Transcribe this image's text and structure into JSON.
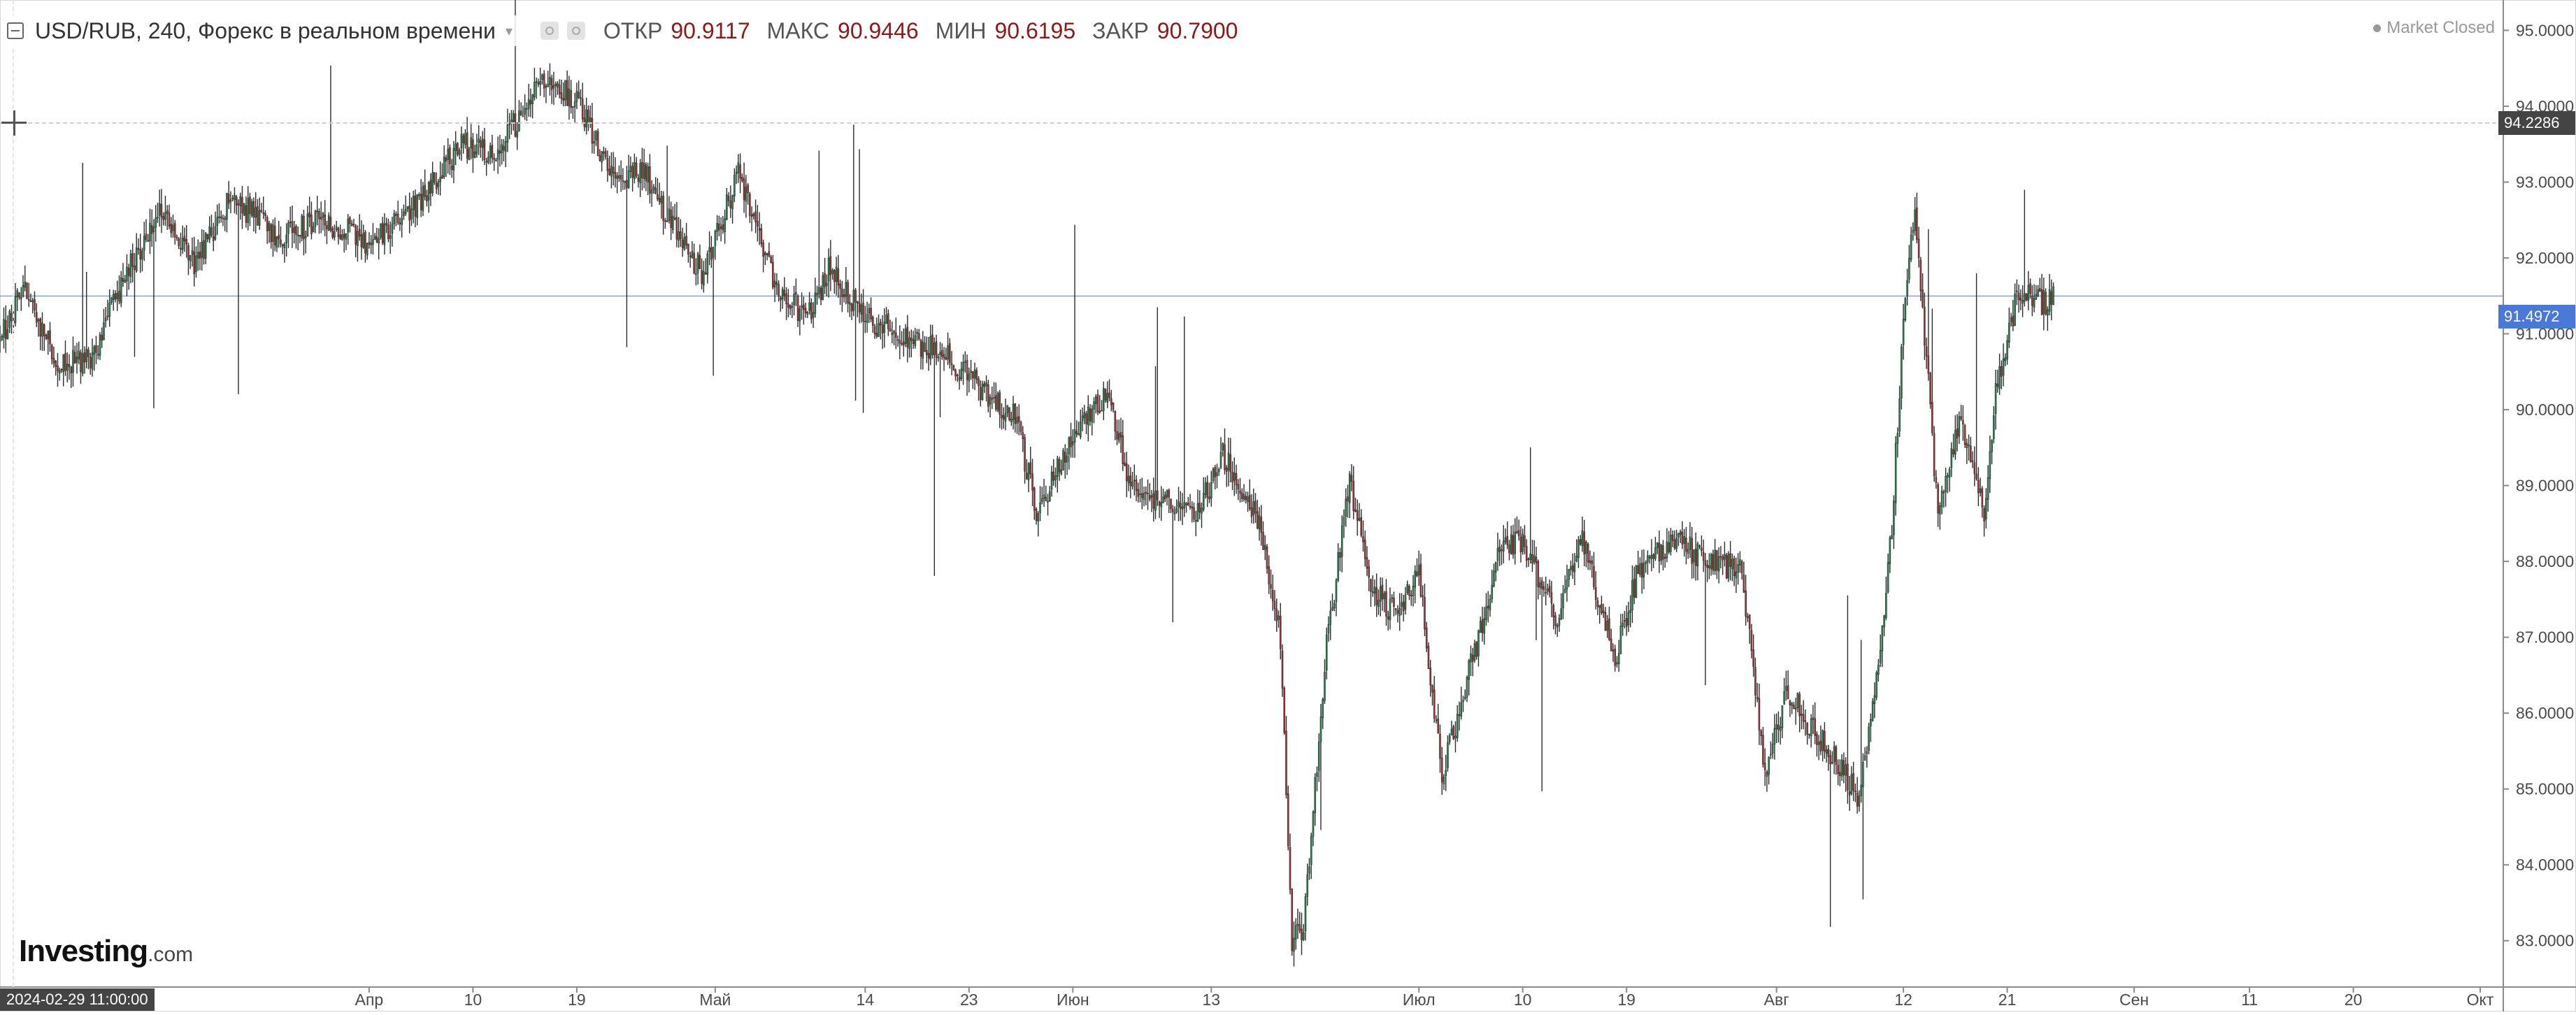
{
  "legend": {
    "title": "USD/RUB, 240, Форекс в реальном времени",
    "ohlc": [
      {
        "label": "ОТКР",
        "value": "90.9117"
      },
      {
        "label": "МАКС",
        "value": "90.9446"
      },
      {
        "label": "МИН",
        "value": "90.6195"
      },
      {
        "label": "ЗАКР",
        "value": "90.7900"
      }
    ]
  },
  "status": {
    "text": "Market Closed"
  },
  "crosshair": {
    "price_label": "94.2286",
    "time_label": "2024-02-29 11:00:00"
  },
  "last_price": {
    "label": "91.4972"
  },
  "watermark": {
    "brand": "Investing",
    "suffix": ".com"
  },
  "colors": {
    "up": "#1e8a4c",
    "down": "#b03030",
    "last_price_line": "#4a78d8",
    "crosshair_tag": "#444444"
  },
  "chart_data": {
    "type": "candlestick",
    "title": "USD/RUB, 240, Форекс в реальном времени",
    "y_axis": {
      "position": "right",
      "range": [
        82.5,
        95.4
      ],
      "ticks": [
        "95.0000",
        "94.0000",
        "93.0000",
        "92.0000",
        "91.0000",
        "90.0000",
        "89.0000",
        "88.0000",
        "87.0000",
        "86.0000",
        "85.0000",
        "84.0000",
        "83.0000"
      ]
    },
    "x_axis": {
      "range": [
        "2024-02-29",
        "2024-10-03"
      ],
      "ticks": [
        {
          "date": "2024-04-01",
          "label": "Апр"
        },
        {
          "date": "2024-04-10",
          "label": "10"
        },
        {
          "date": "2024-04-19",
          "label": "19"
        },
        {
          "date": "2024-05-01",
          "label": "Май"
        },
        {
          "date": "2024-05-14",
          "label": "14"
        },
        {
          "date": "2024-05-23",
          "label": "23"
        },
        {
          "date": "2024-06-01",
          "label": "Июн"
        },
        {
          "date": "2024-06-13",
          "label": "13"
        },
        {
          "date": "2024-07-01",
          "label": "Июл"
        },
        {
          "date": "2024-07-10",
          "label": "10"
        },
        {
          "date": "2024-07-19",
          "label": "19"
        },
        {
          "date": "2024-08-01",
          "label": "Авг"
        },
        {
          "date": "2024-08-12",
          "label": "12"
        },
        {
          "date": "2024-08-21",
          "label": "21"
        },
        {
          "date": "2024-09-01",
          "label": "Сен"
        },
        {
          "date": "2024-09-11",
          "label": "11"
        },
        {
          "date": "2024-09-20",
          "label": "20"
        },
        {
          "date": "2024-10-01",
          "label": "Окт"
        }
      ]
    },
    "bars_per_day": 6,
    "last_price": 91.4972,
    "crosshair_price": 94.2286,
    "close_path": [
      {
        "date": "2024-02-29",
        "close": 90.9
      },
      {
        "date": "2024-03-02",
        "close": 91.6
      },
      {
        "date": "2024-03-05",
        "close": 90.6
      },
      {
        "date": "2024-03-08",
        "close": 90.7
      },
      {
        "date": "2024-03-11",
        "close": 91.8
      },
      {
        "date": "2024-03-14",
        "close": 92.6
      },
      {
        "date": "2024-03-17",
        "close": 91.9
      },
      {
        "date": "2024-03-20",
        "close": 92.8
      },
      {
        "date": "2024-03-24",
        "close": 92.3
      },
      {
        "date": "2024-03-28",
        "close": 92.5
      },
      {
        "date": "2024-04-01",
        "close": 92.2
      },
      {
        "date": "2024-04-05",
        "close": 92.7
      },
      {
        "date": "2024-04-09",
        "close": 93.5
      },
      {
        "date": "2024-04-12",
        "close": 93.4
      },
      {
        "date": "2024-04-16",
        "close": 94.3
      },
      {
        "date": "2024-04-19",
        "close": 94.1
      },
      {
        "date": "2024-04-22",
        "close": 93.1
      },
      {
        "date": "2024-04-25",
        "close": 93.1
      },
      {
        "date": "2024-04-28",
        "close": 92.2
      },
      {
        "date": "2024-04-30",
        "close": 91.8
      },
      {
        "date": "2024-05-03",
        "close": 93.1
      },
      {
        "date": "2024-05-06",
        "close": 91.7
      },
      {
        "date": "2024-05-09",
        "close": 91.2
      },
      {
        "date": "2024-05-11",
        "close": 91.9
      },
      {
        "date": "2024-05-14",
        "close": 91.2
      },
      {
        "date": "2024-05-17",
        "close": 91.0
      },
      {
        "date": "2024-05-21",
        "close": 90.7
      },
      {
        "date": "2024-05-24",
        "close": 90.3
      },
      {
        "date": "2024-05-27",
        "close": 89.9
      },
      {
        "date": "2024-05-29",
        "close": 88.6
      },
      {
        "date": "2024-06-01",
        "close": 89.7
      },
      {
        "date": "2024-06-04",
        "close": 90.2
      },
      {
        "date": "2024-06-06",
        "close": 89.0
      },
      {
        "date": "2024-06-09",
        "close": 88.8
      },
      {
        "date": "2024-06-12",
        "close": 88.7
      },
      {
        "date": "2024-06-14",
        "close": 89.4
      },
      {
        "date": "2024-06-17",
        "close": 88.6
      },
      {
        "date": "2024-06-19",
        "close": 87.0
      },
      {
        "date": "2024-06-20",
        "close": 83.0
      },
      {
        "date": "2024-06-21",
        "close": 83.2
      },
      {
        "date": "2024-06-23",
        "close": 86.9
      },
      {
        "date": "2024-06-25",
        "close": 89.0
      },
      {
        "date": "2024-06-27",
        "close": 87.6
      },
      {
        "date": "2024-06-29",
        "close": 87.3
      },
      {
        "date": "2024-07-01",
        "close": 87.8
      },
      {
        "date": "2024-07-03",
        "close": 85.2
      },
      {
        "date": "2024-07-06",
        "close": 86.9
      },
      {
        "date": "2024-07-08",
        "close": 88.1
      },
      {
        "date": "2024-07-10",
        "close": 88.3
      },
      {
        "date": "2024-07-13",
        "close": 87.2
      },
      {
        "date": "2024-07-15",
        "close": 88.4
      },
      {
        "date": "2024-07-18",
        "close": 86.7
      },
      {
        "date": "2024-07-20",
        "close": 87.9
      },
      {
        "date": "2024-07-23",
        "close": 88.3
      },
      {
        "date": "2024-07-26",
        "close": 88.0
      },
      {
        "date": "2024-07-29",
        "close": 87.9
      },
      {
        "date": "2024-07-31",
        "close": 85.2
      },
      {
        "date": "2024-08-02",
        "close": 86.3
      },
      {
        "date": "2024-08-04",
        "close": 85.8
      },
      {
        "date": "2024-08-06",
        "close": 85.4
      },
      {
        "date": "2024-08-08",
        "close": 84.9
      },
      {
        "date": "2024-08-09",
        "close": 85.8
      },
      {
        "date": "2024-08-10",
        "close": 86.8
      },
      {
        "date": "2024-08-11",
        "close": 88.5
      },
      {
        "date": "2024-08-12",
        "close": 91.2
      },
      {
        "date": "2024-08-13",
        "close": 92.6
      },
      {
        "date": "2024-08-14",
        "close": 90.7
      },
      {
        "date": "2024-08-15",
        "close": 88.6
      },
      {
        "date": "2024-08-17",
        "close": 89.9
      },
      {
        "date": "2024-08-19",
        "close": 88.6
      },
      {
        "date": "2024-08-20",
        "close": 90.2
      },
      {
        "date": "2024-08-22",
        "close": 91.6
      },
      {
        "date": "2024-08-24",
        "close": 91.4
      },
      {
        "date": "2024-08-25",
        "close": 91.5
      }
    ]
  }
}
